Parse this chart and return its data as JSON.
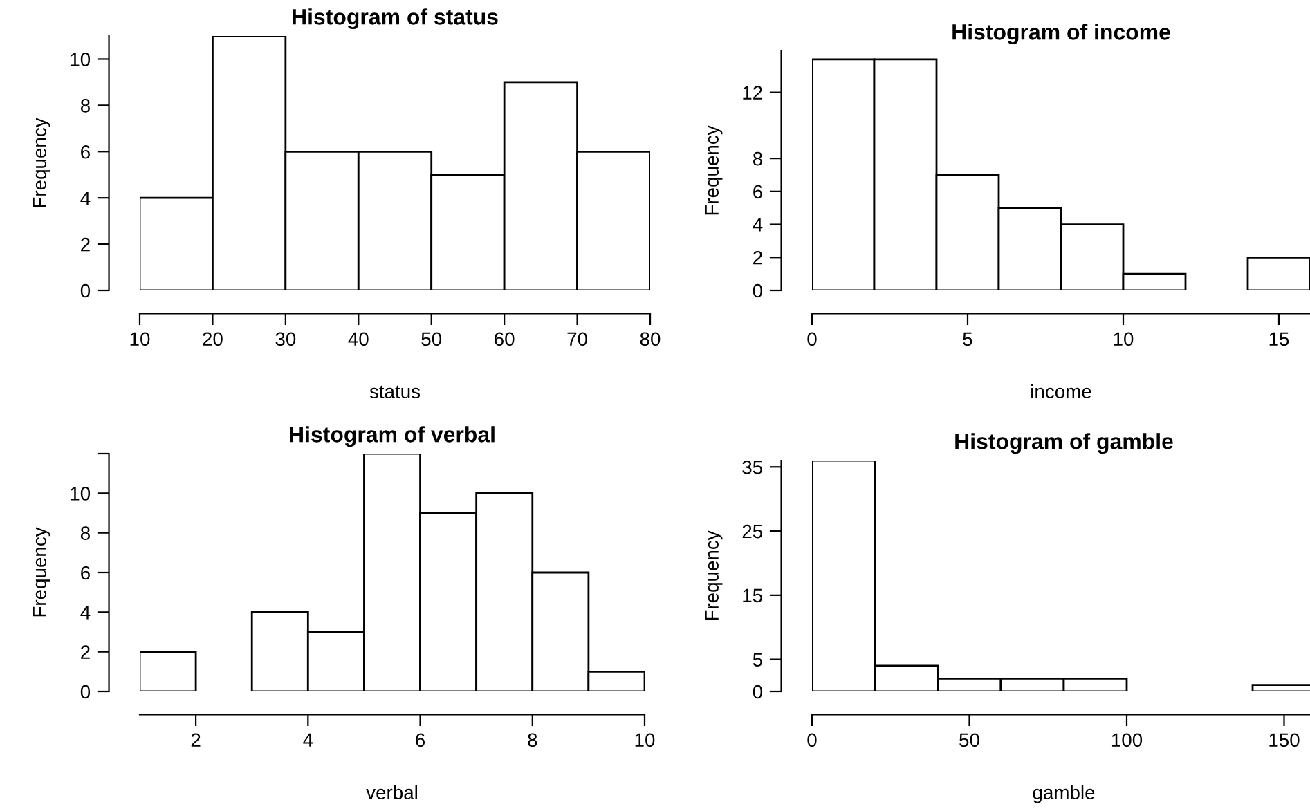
{
  "chart_data": [
    {
      "type": "histogram",
      "title": "Histogram of status",
      "xlabel": "status",
      "ylabel": "Frequency",
      "color": "#ffffff",
      "bins": [
        10,
        20,
        30,
        40,
        50,
        60,
        70,
        80
      ],
      "values": [
        4,
        11,
        6,
        6,
        5,
        9,
        6
      ],
      "xlim": [
        10,
        80
      ],
      "xticks": [
        10,
        20,
        30,
        40,
        50,
        60,
        70,
        80
      ],
      "ylim": [
        0,
        11
      ],
      "yticks": [
        0,
        2,
        4,
        6,
        8,
        10
      ]
    },
    {
      "type": "histogram",
      "title": "Histogram of income",
      "xlabel": "income",
      "ylabel": "Frequency",
      "color": "#ffffff",
      "bins": [
        0,
        2,
        4,
        6,
        8,
        10,
        12,
        14,
        16
      ],
      "values": [
        14,
        14,
        7,
        5,
        4,
        1,
        0,
        2
      ],
      "xlim": [
        0,
        16
      ],
      "xticks": [
        0,
        5,
        10,
        15
      ],
      "ylim": [
        0,
        14.5
      ],
      "yticks": [
        0,
        2,
        4,
        6,
        8,
        12
      ]
    },
    {
      "type": "histogram",
      "title": "Histogram of verbal",
      "xlabel": "verbal",
      "ylabel": "Frequency",
      "color": "#ffffff",
      "bins": [
        1,
        2,
        3,
        4,
        5,
        6,
        7,
        8,
        9,
        10
      ],
      "values": [
        2,
        0,
        4,
        3,
        12,
        9,
        10,
        6,
        1
      ],
      "xlim": [
        1,
        10
      ],
      "xticks": [
        2,
        4,
        6,
        8,
        10
      ],
      "ylim": [
        0,
        12
      ],
      "yticks": [
        0,
        2,
        4,
        6,
        8,
        10,
        {
          "value": 12,
          "label": null
        }
      ]
    },
    {
      "type": "histogram",
      "title": "Histogram of gamble",
      "xlabel": "gamble",
      "ylabel": "Frequency",
      "color": "#ffffff",
      "bins": [
        0,
        20,
        40,
        60,
        80,
        100,
        120,
        140,
        160
      ],
      "values": [
        36,
        4,
        2,
        2,
        2,
        0,
        0,
        1
      ],
      "xlim": [
        0,
        160
      ],
      "xticks": [
        0,
        50,
        100,
        150
      ],
      "ylim": [
        0,
        36
      ],
      "yticks": [
        0,
        5,
        15,
        25,
        35
      ]
    }
  ]
}
